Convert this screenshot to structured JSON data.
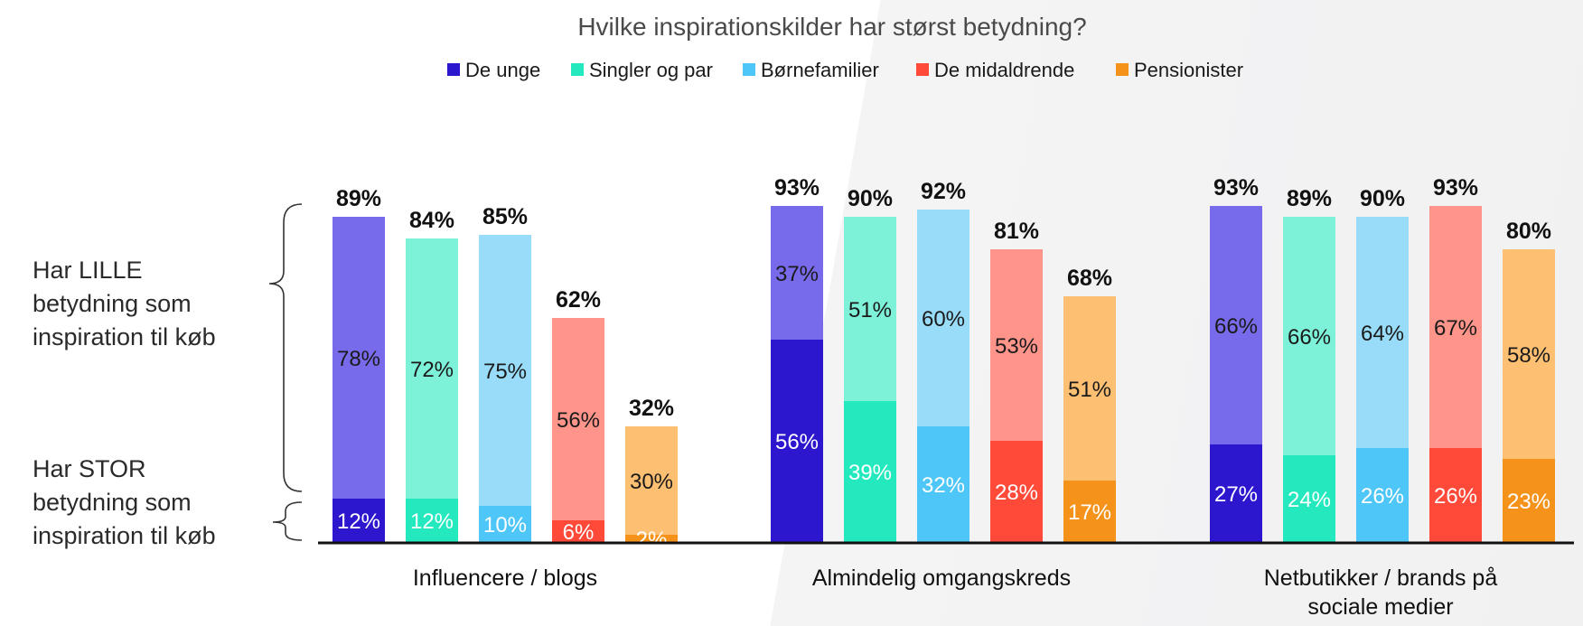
{
  "chart_data": {
    "type": "bar",
    "stacked": true,
    "title": "Hvilke inspirationskilder har størst betydning?",
    "legend_position": "top",
    "categories": [
      "Influencere / blogs",
      "Almindelig omgangskreds",
      "Netbutikker / brands på sociale medier"
    ],
    "category_lines": [
      [
        "Influencere / blogs"
      ],
      [
        "Almindelig omgangskreds"
      ],
      [
        "Netbutikker / brands på",
        "sociale medier"
      ]
    ],
    "stack_labels": {
      "small": [
        "Har LILLE",
        "betydning som",
        "inspiration til køb"
      ],
      "large": [
        "Har STOR",
        "betydning som",
        "inspiration til køb"
      ]
    },
    "series": [
      {
        "name": "De unge",
        "color_light": "#776BEB",
        "color_dark": "#2C17CF",
        "stor": [
          12,
          56,
          27
        ],
        "lille": [
          78,
          37,
          66
        ],
        "total": [
          "89%",
          "93%",
          "93%"
        ]
      },
      {
        "name": "Singler og par",
        "color_light": "#7EF2D9",
        "color_dark": "#24E8BE",
        "stor": [
          12,
          39,
          24
        ],
        "lille": [
          72,
          51,
          66
        ],
        "total": [
          "84%",
          "90%",
          "89%"
        ]
      },
      {
        "name": "Børnefamilier",
        "color_light": "#98DCFA",
        "color_dark": "#4EC7F8",
        "stor": [
          10,
          32,
          26
        ],
        "lille": [
          75,
          60,
          64
        ],
        "total": [
          "85%",
          "92%",
          "90%"
        ]
      },
      {
        "name": "De midaldrende",
        "color_light": "#FF958A",
        "color_dark": "#FF4A3A",
        "stor": [
          6,
          28,
          26
        ],
        "lille": [
          56,
          53,
          67
        ],
        "total": [
          "62%",
          "81%",
          "93%"
        ]
      },
      {
        "name": "Pensionister",
        "color_light": "#FDBF72",
        "color_dark": "#F5921A",
        "stor": [
          2,
          17,
          23
        ],
        "lille": [
          30,
          51,
          58
        ],
        "total": [
          "32%",
          "68%",
          "80%"
        ]
      }
    ]
  }
}
